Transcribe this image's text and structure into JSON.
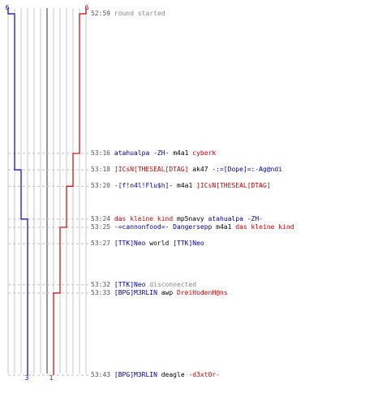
{
  "colors": {
    "blue_team": "#0000cc",
    "red_team": "#cc0000",
    "grid": "#c8c8c8",
    "grid_center": "#555555",
    "dash": "#c0c0c0"
  },
  "chart_data": {
    "type": "line",
    "x_scale_max": 6,
    "time_axis": [
      "52:59",
      "53:43"
    ],
    "top_labels": {
      "blue": "6",
      "red": "6"
    },
    "bottom_labels": {
      "blue": "3",
      "red": "1"
    },
    "series": [
      {
        "values": [
          {
            "t": "52:59",
            "v": 6
          },
          {
            "t": "53:18",
            "v": 5
          },
          {
            "t": "53:24",
            "v": 4
          },
          {
            "t": "53:27",
            "v": 3
          },
          {
            "t": "53:43",
            "v": 3
          }
        ]
      },
      {
        "values": [
          {
            "t": "52:59",
            "v": 6
          },
          {
            "t": "53:16",
            "v": 5
          },
          {
            "t": "53:20",
            "v": 4
          },
          {
            "t": "53:25",
            "v": 3
          },
          {
            "t": "53:33",
            "v": 2
          },
          {
            "t": "53:43",
            "v": 1
          }
        ]
      }
    ]
  },
  "events": [
    {
      "time": "52:59",
      "text": "round started",
      "type": "system"
    },
    {
      "time": "53:16",
      "killer": "atahualpa -ZH-",
      "kteam": "blue",
      "weapon": "m4a1",
      "victim": "cyberk",
      "vteam": "red"
    },
    {
      "time": "53:18",
      "killer": "]ICsN[THESEAL[DTAG]",
      "kteam": "red",
      "weapon": "ak47",
      "victim": "-:=[Dope]=:-Ag@ndi",
      "vteam": "blue"
    },
    {
      "time": "53:20",
      "killer": "-[f!n4l!Flu$h]-",
      "kteam": "blue",
      "weapon": "m4a1",
      "victim": "]ICsN[THESEAL[DTAG]",
      "vteam": "red"
    },
    {
      "time": "53:24",
      "killer": "das kleine kind",
      "kteam": "red",
      "weapon": "mp5navy",
      "victim": "atahualpa -ZH-",
      "vteam": "blue"
    },
    {
      "time": "53:25",
      "killer": "-=cannonfood=- Dangersepp",
      "kteam": "blue",
      "weapon": "m4a1",
      "victim": "das kleine kind",
      "vteam": "red"
    },
    {
      "time": "53:27",
      "killer": "[TTK]Neo",
      "kteam": "blue",
      "weapon": "world",
      "victim": "[TTK]Neo",
      "vteam": "blue"
    },
    {
      "time": "53:32",
      "killer": "[TTK]Neo",
      "kteam": "blue",
      "weapon": "disconnected",
      "victim": "",
      "vteam": "",
      "type": "disconnect"
    },
    {
      "time": "53:33",
      "killer": "[BPG]M3RLIN",
      "kteam": "blue",
      "weapon": "awp",
      "victim": "DreiHodenH@ns",
      "vteam": "red"
    },
    {
      "time": "53:43",
      "killer": "[BPG]M3RLIN",
      "kteam": "blue",
      "weapon": "deagle",
      "victim": "-d3xt0r-",
      "vteam": "red"
    }
  ]
}
